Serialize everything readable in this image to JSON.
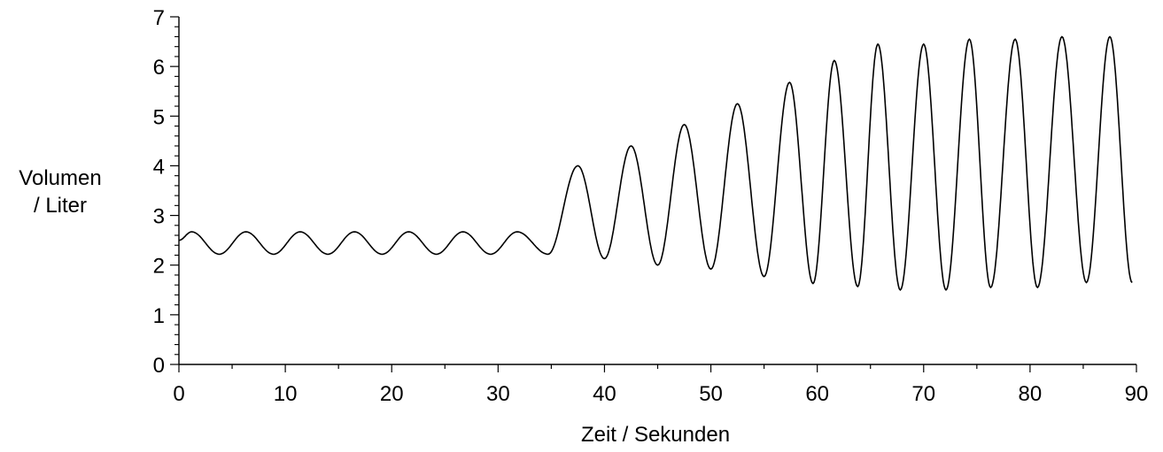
{
  "chart_data": {
    "type": "line",
    "xlabel": "Zeit / Sekunden",
    "ylabel_line1": "Volumen",
    "ylabel_line2": "/ Liter",
    "xlim": [
      0,
      90
    ],
    "ylim": [
      0,
      7
    ],
    "x_ticks": [
      "0",
      "10",
      "20",
      "30",
      "40",
      "50",
      "60",
      "70",
      "80",
      "90"
    ],
    "y_ticks": [
      "0",
      "1",
      "2",
      "3",
      "4",
      "5",
      "6",
      "7"
    ],
    "grid": false,
    "legend": "none",
    "line_color": "#000000",
    "series": [
      {
        "x": [
          0,
          1.2,
          3.8,
          6.3,
          8.9,
          11.4,
          14.0,
          16.5,
          19.1,
          21.6,
          24.2,
          26.7,
          29.3,
          31.8,
          34.7,
          37.5,
          40.0,
          42.5,
          45.0,
          47.5,
          50.0,
          52.5,
          55.0,
          57.4,
          59.6,
          61.6,
          63.8,
          65.7,
          67.8,
          70.0,
          72.1,
          74.3,
          76.3,
          78.6,
          80.7,
          83.0,
          85.3,
          87.5,
          89.6
        ],
        "y": [
          2.5,
          2.67,
          2.22,
          2.67,
          2.22,
          2.67,
          2.22,
          2.67,
          2.22,
          2.67,
          2.22,
          2.67,
          2.22,
          2.67,
          2.22,
          4.0,
          2.13,
          4.4,
          2.0,
          4.83,
          1.92,
          5.25,
          1.77,
          5.68,
          1.63,
          6.12,
          1.57,
          6.45,
          1.5,
          6.45,
          1.5,
          6.55,
          1.55,
          6.55,
          1.55,
          6.6,
          1.65,
          6.6,
          1.65
        ]
      }
    ]
  }
}
